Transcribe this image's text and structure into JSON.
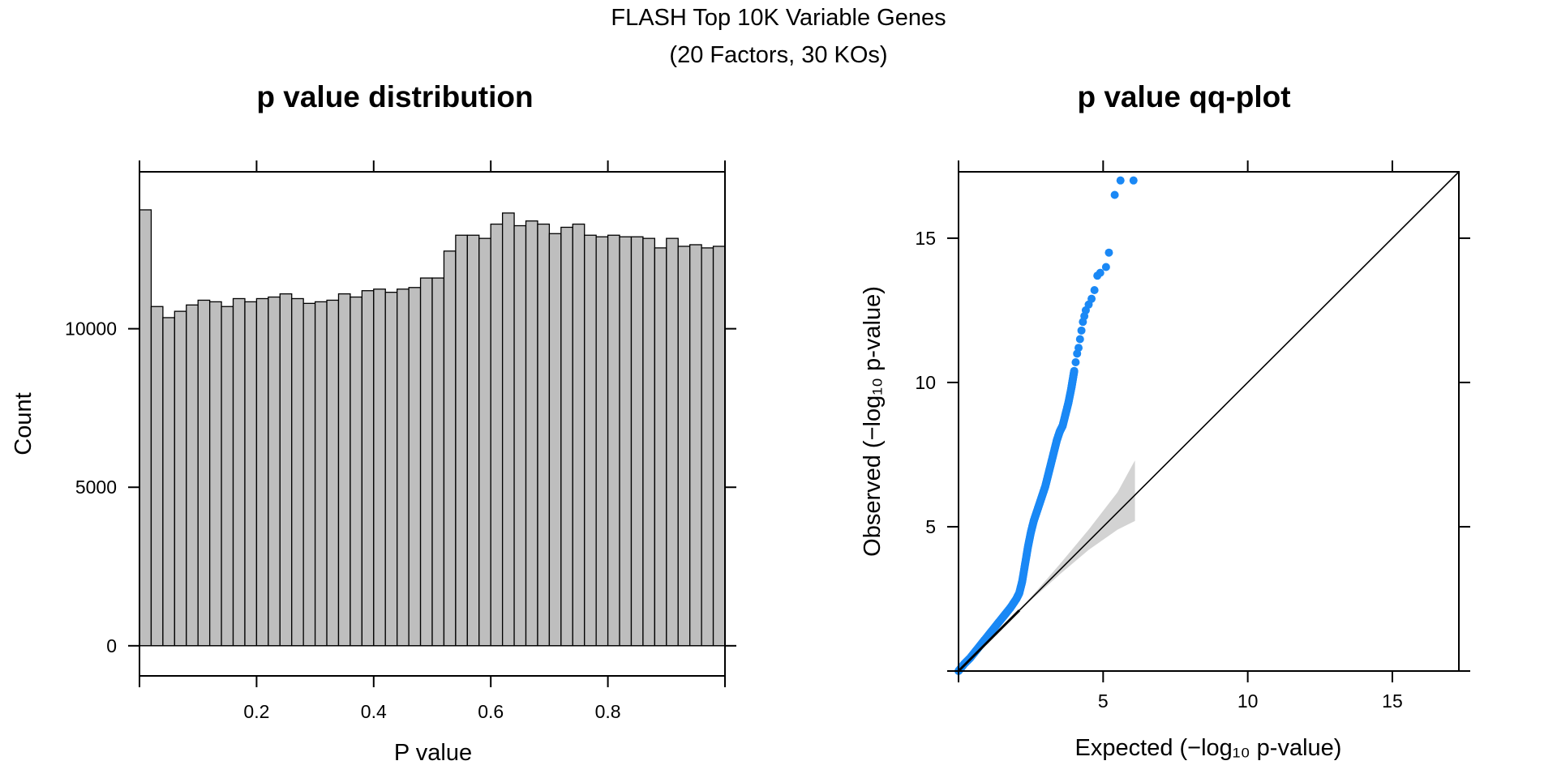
{
  "figure": {
    "title_line1": "FLASH Top 10K Variable Genes",
    "title_line2": "(20 Factors, 30 KOs)"
  },
  "chart_data": [
    {
      "type": "bar",
      "title": "p value distribution",
      "xlabel": "P value",
      "ylabel": "Count",
      "xlim": [
        0,
        1
      ],
      "ylim": [
        -950,
        14950
      ],
      "x_ticks": [
        "0.2",
        "0.4",
        "0.6",
        "0.8"
      ],
      "y_ticks": [
        "0",
        "5000",
        "10000"
      ],
      "bin_width": 0.02,
      "values": [
        13750,
        10700,
        10350,
        10550,
        10750,
        10900,
        10850,
        10700,
        10950,
        10850,
        10950,
        11000,
        11100,
        10950,
        10800,
        10850,
        10900,
        11100,
        11000,
        11200,
        11250,
        11150,
        11250,
        11300,
        11600,
        11600,
        12450,
        12950,
        12950,
        12850,
        13300,
        13650,
        13250,
        13400,
        13300,
        13000,
        13200,
        13300,
        12950,
        12900,
        12950,
        12900,
        12900,
        12850,
        12550,
        12850,
        12600,
        12650,
        12550,
        12600
      ],
      "bar_color": "#bebebe",
      "grid": false
    },
    {
      "type": "scatter",
      "title": "p value qq-plot",
      "xlabel": "Expected (−log₁₀ p-value)",
      "ylabel": "Observed (−log₁₀ p-value)",
      "xlim": [
        0,
        17.3
      ],
      "ylim": [
        0,
        17.3
      ],
      "x_ticks": [
        "5",
        "10",
        "15"
      ],
      "y_ticks": [
        "5",
        "10",
        "15"
      ],
      "point_color": "#1a88f5",
      "band_color": "#d3d3d3",
      "points_x": [
        0,
        0.2,
        0.4,
        0.6,
        0.8,
        1.0,
        1.2,
        1.4,
        1.6,
        1.8,
        2.0,
        2.1,
        2.2,
        2.3,
        2.4,
        2.5,
        2.6,
        2.7,
        2.8,
        2.9,
        3.0,
        3.1,
        3.2,
        3.3,
        3.4,
        3.5,
        3.6,
        3.7,
        3.8,
        3.9,
        3.95,
        4.0,
        4.05,
        4.1,
        4.15,
        4.2,
        4.25,
        4.3,
        4.35,
        4.4,
        4.5,
        4.6,
        4.7,
        4.8,
        4.9,
        5.1,
        5.2,
        5.4,
        5.6,
        6.05
      ],
      "points_y": [
        0,
        0.25,
        0.45,
        0.7,
        0.95,
        1.2,
        1.45,
        1.7,
        1.95,
        2.2,
        2.5,
        2.7,
        3.1,
        3.7,
        4.3,
        4.8,
        5.2,
        5.5,
        5.8,
        6.1,
        6.4,
        6.8,
        7.2,
        7.6,
        8.0,
        8.3,
        8.5,
        8.9,
        9.3,
        9.8,
        10.1,
        10.4,
        10.7,
        11.0,
        11.2,
        11.5,
        11.8,
        12.1,
        12.3,
        12.5,
        12.7,
        12.9,
        13.2,
        13.7,
        13.8,
        14.0,
        14.5,
        16.5,
        17.0,
        17.0
      ],
      "band_x": [
        1.5,
        2.5,
        3.5,
        4.5,
        5.5,
        6.1
      ],
      "band_lower": [
        1.5,
        2.45,
        3.35,
        4.2,
        4.9,
        5.2
      ],
      "band_upper": [
        1.5,
        2.55,
        3.7,
        4.9,
        6.2,
        7.3
      ],
      "diagonal": true,
      "grid": false
    }
  ]
}
